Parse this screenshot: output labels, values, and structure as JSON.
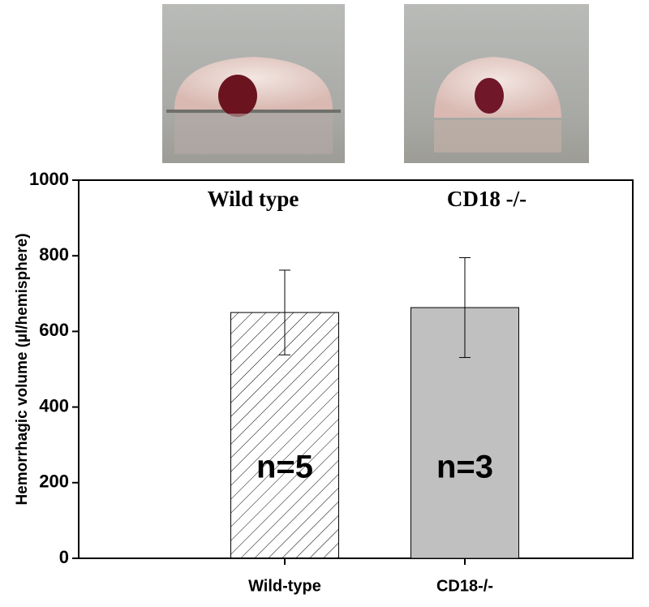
{
  "chart_data": {
    "type": "bar",
    "y_label": "Hemorrhagic volume (µl/hemisphere)",
    "categories": [
      "Wild-type",
      "CD18-/-"
    ],
    "values": [
      650,
      663
    ],
    "errors": [
      112,
      132
    ],
    "colors": [
      "#ffffff",
      "#c0c0c0"
    ],
    "hatch": [
      true,
      false
    ],
    "group_labels": [
      "Wild type",
      "CD18 -/-"
    ],
    "n_labels": [
      "n=5",
      "n=3"
    ],
    "ylim": [
      0,
      1000
    ],
    "yticks": [
      0,
      200,
      400,
      600,
      800,
      1000
    ]
  }
}
